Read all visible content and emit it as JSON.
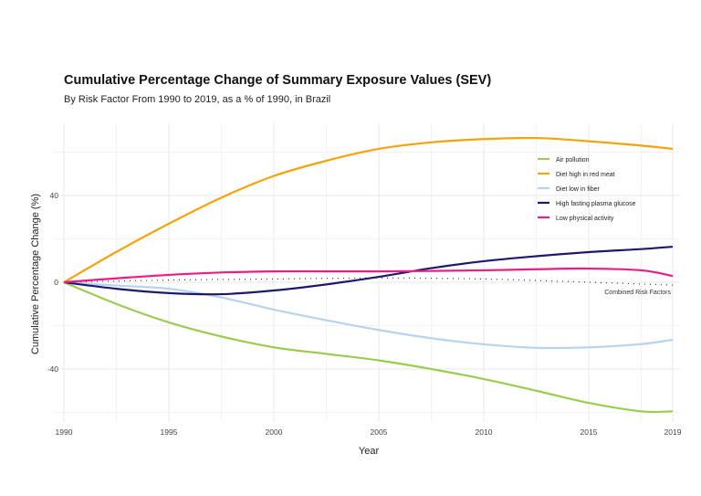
{
  "chart_data": {
    "type": "line",
    "title": "Cumulative Percentage Change of Summary Exposure Values (SEV)",
    "subtitle": "By Risk Factor From 1990 to 2019, as a % of 1990, in Brazil",
    "xlabel": "Year",
    "ylabel": "Cumulative Percentage Change (%)",
    "xlim": [
      1990,
      2019
    ],
    "ylim": [
      -65,
      72
    ],
    "xticks": [
      1990,
      1995,
      2000,
      2005,
      2010,
      2015,
      2019
    ],
    "yticks": [
      -40,
      0,
      40
    ],
    "grid": true,
    "legend": "top-right",
    "x": [
      1990,
      1992.5,
      1995,
      1997.5,
      2000,
      2002.5,
      2005,
      2007.5,
      2010,
      2012.5,
      2015,
      2017.5,
      2019
    ],
    "series": [
      {
        "name": "Air pollution",
        "color": "#9ACD4F",
        "values": [
          0,
          -10,
          -18.5,
          -25,
          -30,
          -33,
          -36,
          -40,
          -44.6,
          -50,
          -55.6,
          -59.5,
          -59.5
        ]
      },
      {
        "name": "Diet high in red meat",
        "color": "#F5A30A",
        "values": [
          0,
          14,
          27,
          39,
          49,
          56,
          61.5,
          64.5,
          66,
          66.5,
          65,
          63,
          61.5
        ]
      },
      {
        "name": "Diet low in fiber",
        "color": "#B7D3EE",
        "values": [
          0,
          -1.5,
          -3,
          -7,
          -12.6,
          -17.5,
          -22,
          -25.8,
          -28.6,
          -30.2,
          -30,
          -28.5,
          -26.5
        ]
      },
      {
        "name": "High fasting plasma glucose",
        "color": "#1C1A6E",
        "values": [
          0,
          -3,
          -5,
          -5.5,
          -3.8,
          -1,
          2.5,
          6.5,
          9.7,
          12,
          13.9,
          15.3,
          16.4
        ]
      },
      {
        "name": "Low physical activity",
        "color": "#EE1B85",
        "values": [
          0,
          1.8,
          3.4,
          4.5,
          5,
          5,
          5,
          5.2,
          5.5,
          6,
          6.3,
          5.5,
          2.9
        ]
      }
    ],
    "annotation": {
      "label": "Combined Risk Factors",
      "x": [
        1990,
        1995,
        2000,
        2005,
        2010,
        2015,
        2019
      ],
      "values": [
        0,
        1,
        1.5,
        2,
        1.5,
        0,
        -1.3
      ]
    }
  }
}
